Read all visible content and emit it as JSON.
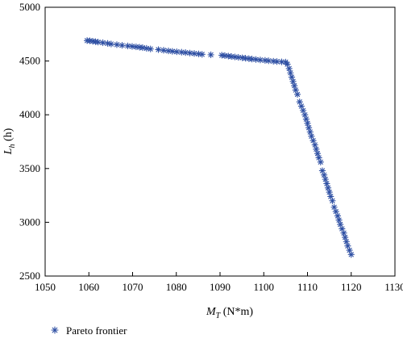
{
  "chart_data": {
    "type": "scatter",
    "marker": "asterisk",
    "color": "#2e4fa3",
    "xlim": [
      1050,
      1130
    ],
    "ylim": [
      2500,
      5000
    ],
    "xticks": [
      1050,
      1060,
      1070,
      1080,
      1090,
      1100,
      1110,
      1120,
      1130
    ],
    "yticks": [
      2500,
      3000,
      3500,
      4000,
      4500,
      5000
    ],
    "xlabel": {
      "main": "M",
      "sub": "T",
      "unit": " (N*m)"
    },
    "ylabel": {
      "main": "L",
      "sub": "h",
      "unit": " (h)"
    },
    "legend": {
      "position": "bottom-left"
    },
    "series": [
      {
        "name": "Pareto frontier",
        "x": [
          1059.6,
          1060.2,
          1060.9,
          1061.5,
          1062.1,
          1063.2,
          1064.3,
          1065.1,
          1066.4,
          1067.6,
          1068.9,
          1069.9,
          1070.8,
          1071.6,
          1072.3,
          1073.2,
          1074.1,
          1075.9,
          1077.1,
          1078.2,
          1079.1,
          1080.1,
          1081.2,
          1082.1,
          1083.1,
          1084.1,
          1085.1,
          1085.9,
          1087.9,
          1090.4,
          1091.1,
          1091.9,
          1092.6,
          1093.4,
          1094.2,
          1095.1,
          1095.8,
          1096.6,
          1097.3,
          1098.2,
          1099.2,
          1100.3,
          1101.1,
          1102.2,
          1103.0,
          1104.1,
          1105.0,
          1105.4,
          1105.8,
          1106.1,
          1106.4,
          1106.7,
          1107.0,
          1107.3,
          1107.7,
          1108.2,
          1108.6,
          1109.0,
          1109.4,
          1109.7,
          1110.0,
          1110.3,
          1110.6,
          1110.9,
          1111.3,
          1111.7,
          1112.0,
          1112.3,
          1112.6,
          1113.0,
          1113.4,
          1113.8,
          1114.1,
          1114.4,
          1114.7,
          1115.0,
          1115.3,
          1115.7,
          1116.1,
          1116.5,
          1116.9,
          1117.2,
          1117.5,
          1117.9,
          1118.3,
          1118.6,
          1118.9,
          1119.2,
          1119.6,
          1120.0
        ],
        "y": [
          4690,
          4688,
          4684,
          4680,
          4676,
          4670,
          4664,
          4658,
          4652,
          4646,
          4640,
          4636,
          4632,
          4628,
          4624,
          4618,
          4612,
          4606,
          4600,
          4594,
          4590,
          4586,
          4582,
          4578,
          4574,
          4570,
          4566,
          4562,
          4558,
          4554,
          4550,
          4546,
          4542,
          4538,
          4534,
          4530,
          4526,
          4522,
          4518,
          4514,
          4510,
          4506,
          4502,
          4498,
          4495,
          4492,
          4490,
          4470,
          4430,
          4390,
          4350,
          4310,
          4270,
          4230,
          4190,
          4120,
          4080,
          4040,
          4000,
          3960,
          3920,
          3880,
          3840,
          3800,
          3760,
          3720,
          3680,
          3640,
          3600,
          3560,
          3480,
          3440,
          3400,
          3360,
          3320,
          3280,
          3240,
          3200,
          3140,
          3100,
          3060,
          3020,
          2980,
          2940,
          2900,
          2860,
          2820,
          2780,
          2740,
          2700
        ]
      }
    ]
  }
}
